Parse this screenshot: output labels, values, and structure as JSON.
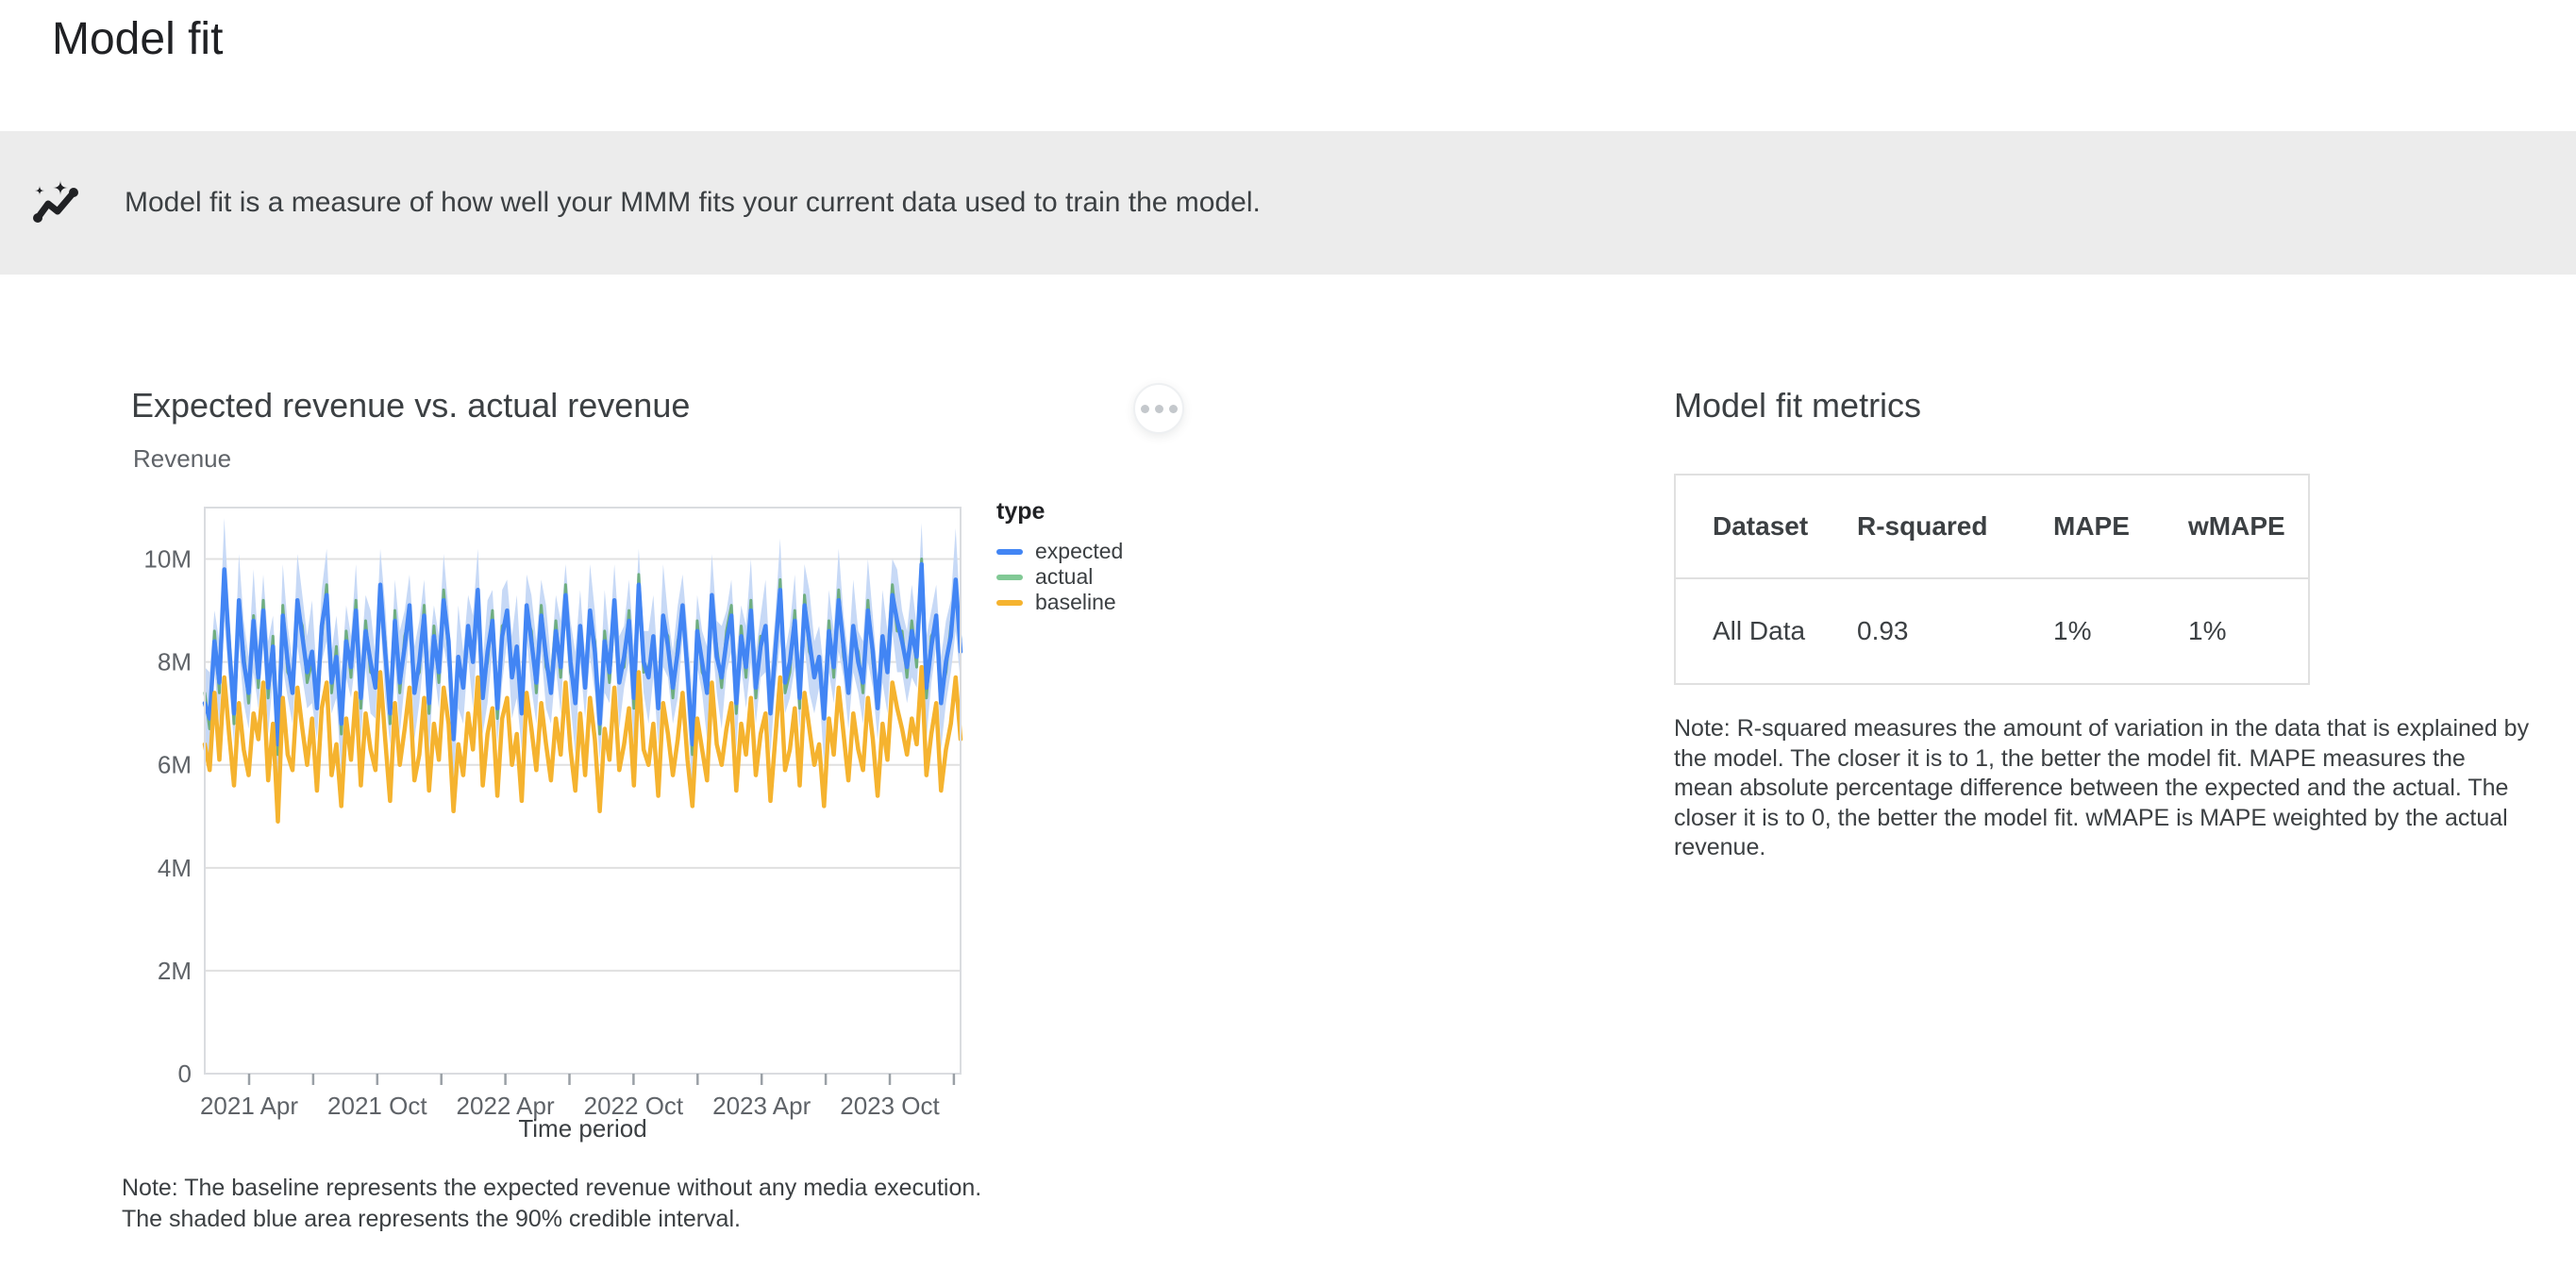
{
  "page": {
    "title": "Model fit"
  },
  "banner": {
    "icon": "sparkline-with-sparkles",
    "text": "Model fit is a measure of how well your MMM fits your current data used to train the model."
  },
  "icons": {
    "banner": "sparkline-with-sparkles",
    "chart_menu": "three-dots-more"
  },
  "chart_section": {
    "title": "Expected revenue vs. actual revenue",
    "subtitle": "Revenue",
    "note_line1": "Note: The baseline represents the expected revenue without any media execution.",
    "note_line2": "The shaded blue area represents the 90% credible interval."
  },
  "metrics_section": {
    "title": "Model fit metrics",
    "table": {
      "headers": [
        "Dataset",
        "R-squared",
        "MAPE",
        "wMAPE"
      ],
      "rows": [
        [
          "All Data",
          "0.93",
          "1%",
          "1%"
        ]
      ]
    },
    "note": "Note: R-squared measures the amount of variation in the data that is explained by the model. The closer it is to 1, the better the model fit. MAPE measures the mean absolute percentage difference between the expected and the actual. The closer it is to 0, the better the model fit. wMAPE is MAPE weighted by the actual revenue."
  },
  "chart_data": {
    "type": "line",
    "title": "Expected revenue vs. actual revenue",
    "unit": "millions",
    "frequency": "weekly",
    "grid": "horizontal-only",
    "legend_position": "right",
    "x_axis": {
      "label": "Time period",
      "start": "2021-02",
      "end": "2024-01",
      "tick_interval": "quarter",
      "tick_slots": 12,
      "tick_labels": [
        [
          0,
          "2021 Apr"
        ],
        [
          2,
          "2021 Oct"
        ],
        [
          4,
          "2022 Apr"
        ],
        [
          6,
          "2022 Oct"
        ],
        [
          8,
          "2023 Apr"
        ],
        [
          10,
          "2023 Oct"
        ]
      ]
    },
    "y_axis": {
      "label": "Revenue",
      "max": 11,
      "ticks": [
        [
          0,
          "0"
        ],
        [
          2,
          "2M"
        ],
        [
          4,
          "4M"
        ],
        [
          6,
          "6M"
        ],
        [
          8,
          "8M"
        ],
        [
          10,
          "10M"
        ]
      ]
    },
    "legend": {
      "title": "type",
      "entries": [
        {
          "label": "expected",
          "color": "#4285F4"
        },
        {
          "label": "actual",
          "color": "#81C995"
        },
        {
          "label": "baseline",
          "color": "#F5B32F"
        }
      ]
    },
    "band": {
      "label": "90% credible interval",
      "color": "#C7D9F6",
      "applies_to": "expected"
    },
    "series": [
      {
        "name": "expected",
        "color": "#4285F4",
        "width": 4.5,
        "values": [
          7.2,
          6.9,
          8.4,
          7.6,
          9.8,
          8.3,
          7.0,
          9.2,
          8.0,
          7.4,
          8.8,
          7.7,
          9.0,
          7.5,
          8.3,
          6.4,
          8.9,
          8.0,
          7.4,
          9.2,
          8.5,
          7.8,
          8.2,
          7.1,
          8.7,
          9.3,
          7.6,
          8.1,
          6.8,
          8.4,
          7.9,
          9.0,
          7.3,
          8.6,
          8.0,
          7.5,
          9.5,
          8.2,
          7.0,
          8.8,
          7.6,
          8.3,
          9.1,
          7.4,
          8.0,
          8.9,
          7.2,
          8.5,
          7.8,
          9.2,
          8.4,
          6.5,
          8.1,
          7.5,
          8.7,
          8.0,
          9.4,
          7.3,
          8.2,
          8.8,
          7.1,
          8.5,
          9.0,
          7.7,
          8.3,
          7.0,
          9.1,
          8.4,
          7.6,
          8.9,
          8.1,
          7.4,
          8.6,
          7.9,
          9.3,
          8.0,
          7.2,
          8.7,
          7.5,
          9.0,
          8.2,
          6.8,
          8.4,
          7.8,
          9.2,
          7.6,
          8.1,
          8.8,
          7.3,
          9.5,
          8.0,
          7.7,
          8.5,
          7.1,
          8.9,
          8.3,
          7.5,
          8.2,
          9.1,
          7.8,
          6.4,
          8.6,
          8.0,
          7.4,
          9.3,
          8.1,
          7.7,
          8.4,
          8.9,
          7.2,
          8.5,
          7.9,
          9.0,
          7.5,
          8.3,
          8.7,
          7.0,
          8.2,
          9.4,
          7.6,
          8.0,
          8.8,
          7.3,
          9.1,
          8.4,
          7.7,
          8.1,
          6.9,
          8.6,
          7.9,
          9.2,
          8.3,
          7.4,
          8.7,
          8.0,
          7.6,
          9.0,
          8.2,
          7.1,
          8.5,
          7.8,
          9.3,
          8.8,
          8.4,
          7.9,
          8.6,
          8.1,
          9.9,
          7.5,
          8.3,
          8.9,
          7.2,
          8.0,
          8.5,
          9.6,
          8.2
        ]
      },
      {
        "name": "actual",
        "color": "#6FAE80",
        "width": 3,
        "values": [
          7.4,
          6.7,
          8.6,
          7.4,
          9.6,
          8.5,
          6.8,
          9.0,
          8.2,
          7.2,
          8.9,
          7.5,
          9.2,
          7.3,
          8.5,
          6.2,
          9.1,
          7.8,
          7.6,
          9.0,
          8.7,
          7.6,
          8.0,
          7.3,
          8.5,
          9.5,
          7.4,
          8.3,
          6.6,
          8.6,
          7.7,
          9.2,
          7.1,
          8.8,
          7.8,
          7.7,
          9.3,
          8.4,
          6.8,
          9.0,
          7.4,
          8.5,
          8.9,
          7.6,
          7.8,
          9.1,
          7.0,
          8.7,
          7.6,
          9.4,
          8.2,
          6.7,
          7.9,
          7.7,
          8.5,
          8.2,
          9.2,
          7.5,
          8.0,
          9.0,
          6.9,
          8.7,
          8.8,
          7.9,
          8.1,
          7.2,
          8.9,
          8.6,
          7.4,
          9.1,
          7.9,
          7.6,
          8.8,
          7.7,
          9.5,
          7.8,
          7.4,
          8.5,
          7.7,
          8.8,
          8.4,
          6.6,
          8.6,
          7.6,
          9.0,
          7.8,
          7.9,
          9.0,
          7.1,
          9.7,
          7.8,
          7.9,
          8.3,
          7.3,
          8.7,
          8.5,
          7.3,
          8.4,
          8.9,
          8.0,
          6.2,
          8.8,
          7.8,
          7.6,
          9.1,
          8.3,
          7.5,
          8.6,
          9.1,
          7.0,
          8.7,
          7.7,
          9.2,
          7.3,
          8.5,
          8.5,
          7.2,
          8.0,
          9.6,
          7.4,
          7.8,
          9.0,
          7.1,
          9.3,
          8.2,
          7.9,
          7.9,
          7.1,
          8.8,
          7.7,
          9.4,
          8.1,
          7.6,
          8.5,
          8.2,
          7.4,
          9.2,
          8.0,
          7.3,
          8.3,
          8.0,
          9.5,
          8.6,
          8.6,
          7.7,
          8.8,
          7.9,
          10.0,
          7.3,
          8.5,
          8.7,
          7.4,
          7.8,
          8.7,
          9.4,
          8.4
        ]
      },
      {
        "name": "baseline",
        "color": "#F5B32F",
        "width": 4.5,
        "values": [
          6.4,
          5.9,
          7.4,
          6.1,
          7.7,
          6.6,
          5.6,
          7.2,
          6.3,
          5.8,
          7.0,
          6.5,
          7.6,
          5.7,
          6.8,
          4.9,
          7.3,
          6.2,
          5.9,
          7.5,
          6.7,
          6.0,
          6.9,
          5.5,
          7.1,
          7.6,
          5.8,
          6.4,
          5.2,
          6.9,
          6.1,
          7.4,
          5.6,
          7.0,
          6.3,
          5.9,
          7.8,
          6.5,
          5.3,
          7.2,
          6.0,
          6.7,
          7.5,
          5.7,
          6.2,
          7.3,
          5.5,
          6.8,
          6.1,
          7.5,
          6.8,
          5.1,
          6.4,
          5.8,
          7.0,
          6.3,
          7.7,
          5.6,
          6.6,
          7.1,
          5.4,
          6.9,
          7.3,
          6.0,
          6.6,
          5.3,
          7.4,
          6.7,
          5.9,
          7.2,
          6.4,
          5.7,
          6.9,
          6.2,
          7.6,
          6.3,
          5.5,
          7.0,
          5.8,
          7.3,
          6.5,
          5.1,
          6.7,
          6.1,
          7.5,
          5.9,
          6.4,
          7.1,
          5.6,
          7.8,
          6.3,
          6.0,
          6.8,
          5.4,
          7.2,
          6.6,
          5.8,
          6.5,
          7.4,
          6.1,
          5.2,
          6.9,
          6.3,
          5.7,
          7.6,
          6.4,
          6.0,
          6.7,
          7.2,
          5.5,
          6.8,
          6.2,
          7.3,
          5.8,
          6.6,
          7.0,
          5.3,
          6.5,
          7.7,
          5.9,
          6.3,
          7.1,
          5.6,
          7.4,
          6.7,
          6.0,
          6.4,
          5.2,
          6.9,
          6.2,
          7.5,
          6.6,
          5.7,
          7.0,
          6.3,
          5.9,
          7.3,
          6.5,
          5.4,
          6.8,
          6.1,
          7.6,
          7.1,
          6.7,
          6.2,
          6.9,
          6.4,
          7.9,
          5.8,
          6.6,
          7.2,
          5.5,
          6.3,
          6.8,
          7.7,
          6.5
        ]
      }
    ],
    "ci_margin": [
      0.7,
      0.9,
      0.6,
      0.8,
      1.0,
      0.7,
      0.6,
      0.9,
      0.8,
      0.7,
      1.0,
      0.6,
      0.7,
      0.9,
      0.6,
      0.8,
      1.0,
      0.7,
      0.6,
      0.9,
      0.8,
      0.7,
      1.0,
      0.6,
      0.7,
      0.9,
      0.6,
      0.8,
      1.0,
      0.7,
      0.6,
      0.9,
      0.8,
      0.7,
      1.0,
      0.6,
      0.7,
      0.9,
      0.6,
      0.8,
      1.0,
      0.7,
      0.6,
      0.9,
      0.8,
      0.7,
      1.0,
      0.6,
      0.7,
      0.9,
      0.6,
      0.8,
      1.0,
      0.7,
      0.6,
      0.9,
      0.8,
      0.7,
      1.0,
      0.6,
      0.7,
      0.9,
      0.6,
      0.8,
      1.0,
      0.7,
      0.6,
      0.9,
      0.8,
      0.7,
      1.0,
      0.6,
      0.7,
      0.9,
      0.6,
      0.8,
      1.0,
      0.7,
      0.6,
      0.9,
      0.8,
      0.7,
      1.0,
      0.6,
      0.7,
      0.9,
      0.6,
      0.8,
      1.0,
      0.7,
      0.6,
      0.9,
      0.8,
      0.7,
      1.0,
      0.6,
      0.7,
      0.9,
      0.6,
      0.8,
      1.0,
      0.7,
      0.6,
      0.9,
      0.8,
      0.7,
      1.0,
      0.6,
      0.7,
      0.9,
      0.6,
      0.8,
      1.0,
      0.7,
      0.6,
      0.9,
      0.8,
      0.7,
      1.0,
      0.6,
      0.7,
      0.9,
      0.6,
      0.8,
      1.0,
      0.7,
      0.6,
      0.9,
      0.8,
      0.7,
      1.0,
      0.6,
      0.7,
      0.9,
      0.6,
      0.8,
      1.0,
      0.7,
      0.6,
      0.9,
      0.8,
      0.7,
      1.0,
      0.6,
      0.7,
      0.9,
      0.6,
      0.8,
      1.0,
      0.7,
      0.6,
      0.9,
      0.8,
      0.7,
      1.0,
      0.6
    ]
  },
  "colors": {
    "banner_bg": "#ececec",
    "text_dark": "#202124",
    "text_medium": "#3c4043",
    "text_gray": "#5f6368",
    "table_border": "#e0e0e0",
    "plot_border": "#dadce0",
    "gridline": "#e0e0e0"
  }
}
